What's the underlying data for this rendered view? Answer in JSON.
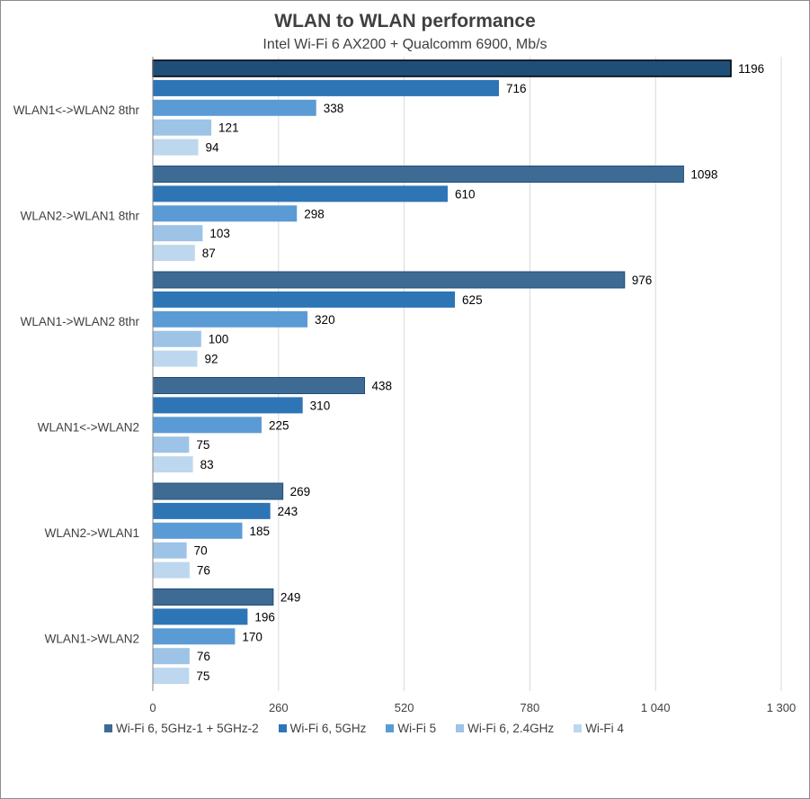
{
  "chart_data": {
    "type": "bar",
    "orientation": "horizontal",
    "title": "WLAN to WLAN performance",
    "subtitle": "Intel Wi-Fi 6 AX200 + Qualcomm 6900, Mb/s",
    "xlabel": "",
    "ylabel": "",
    "xlim": [
      0,
      1300
    ],
    "xticks": [
      0,
      260,
      520,
      780,
      1040,
      1300
    ],
    "xtick_labels": [
      "0",
      "260",
      "520",
      "780",
      "1 040",
      "1 300"
    ],
    "grid": true,
    "legend_position": "bottom",
    "categories": [
      "WLAN1<->WLAN2 8thr",
      "WLAN2->WLAN1 8thr",
      "WLAN1->WLAN2 8thr",
      "WLAN1<->WLAN2",
      "WLAN2->WLAN1",
      "WLAN1->WLAN2"
    ],
    "series": [
      {
        "name": "Wi-Fi 6, 5GHz-1 + 5GHz-2",
        "color": "#3e6b94",
        "values": [
          1196,
          1098,
          976,
          438,
          269,
          249
        ]
      },
      {
        "name": "Wi-Fi 6, 5GHz",
        "color": "#2e75b6",
        "values": [
          716,
          610,
          625,
          310,
          243,
          196
        ]
      },
      {
        "name": "Wi-Fi 5",
        "color": "#5b9bd5",
        "values": [
          338,
          298,
          320,
          225,
          185,
          170
        ]
      },
      {
        "name": "Wi-Fi 6, 2.4GHz",
        "color": "#9dc3e6",
        "values": [
          121,
          103,
          100,
          75,
          70,
          76
        ]
      },
      {
        "name": "Wi-Fi 4",
        "color": "#bdd7ee",
        "values": [
          94,
          87,
          92,
          83,
          76,
          75
        ]
      }
    ],
    "highlighted": {
      "series": 0,
      "category": 0,
      "color": "#1f4e79"
    }
  }
}
